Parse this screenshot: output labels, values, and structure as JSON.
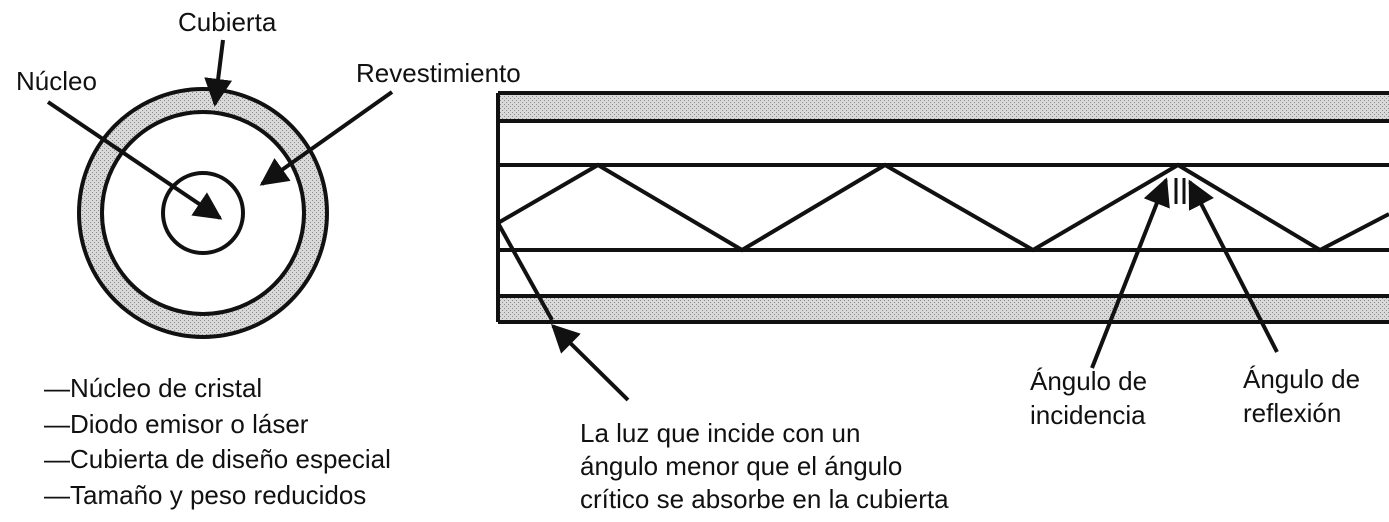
{
  "labels": {
    "cubierta": "Cubierta",
    "nucleo": "Núcleo",
    "revestimiento": "Revestimiento",
    "angulo_incidencia_1": "Ángulo de",
    "angulo_incidencia_2": "incidencia",
    "angulo_reflexion_1": "Ángulo de",
    "angulo_reflexion_2": "reflexión"
  },
  "features": [
    "—Núcleo de cristal",
    "—Diodo emisor o láser",
    "—Cubierta de diseño especial",
    "—Tamaño y peso reducidos"
  ],
  "absorption_note": [
    "La luz que incide con un",
    "ángulo menor que el ángulo",
    "crítico se absorbe en la cubierta"
  ],
  "colors": {
    "line": "#111111",
    "jacket_fill": "#cfcfcf",
    "background": "#ffffff"
  }
}
